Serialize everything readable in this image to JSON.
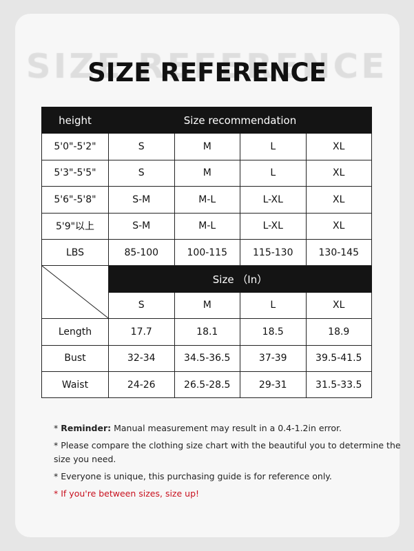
{
  "title": "SIZE REFERENCE",
  "table1": {
    "col_header": "height",
    "span_header": "Size recommendation",
    "rows": [
      [
        "5'0\"-5'2\"",
        "S",
        "M",
        "L",
        "XL"
      ],
      [
        "5'3\"-5'5\"",
        "S",
        "M",
        "L",
        "XL"
      ],
      [
        "5'6\"-5'8\"",
        "S-M",
        "M-L",
        "L-XL",
        "XL"
      ],
      [
        "5'9\"以上",
        "S-M",
        "M-L",
        "L-XL",
        "XL"
      ],
      [
        "LBS",
        "85-100",
        "100-115",
        "115-130",
        "130-145"
      ]
    ]
  },
  "table2": {
    "span_header": "Size （In）",
    "sizes": [
      "S",
      "M",
      "L",
      "XL"
    ],
    "rows": [
      [
        "Length",
        "17.7",
        "18.1",
        "18.5",
        "18.9"
      ],
      [
        "Bust",
        "32-34",
        "34.5-36.5",
        "37-39",
        "39.5-41.5"
      ],
      [
        "Waist",
        "24-26",
        "26.5-28.5",
        "29-31",
        "31.5-33.5"
      ]
    ]
  },
  "notes": {
    "reminder_label": "Reminder:",
    "reminder_text": " Manual measurement may result in a 0.4-1.2in error.",
    "n2": "Please compare the clothing size chart with the beautiful you to determine the size you need.",
    "n3": "Everyone is unique, this purchasing guide is for reference only.",
    "n4": "If you're between sizes, size up!",
    "bullet": "*"
  },
  "colors": {
    "header": "#141414",
    "warning": "#c8101e"
  }
}
